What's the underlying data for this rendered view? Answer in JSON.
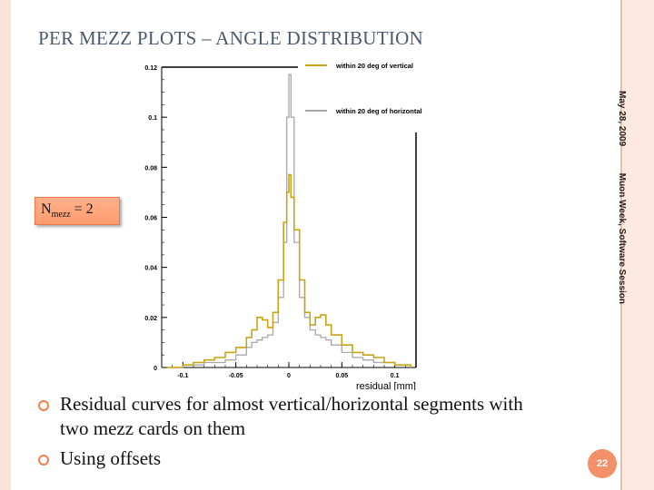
{
  "slide": {
    "title": "PER MEZZ PLOTS – ANGLE DISTRIBUTION",
    "date": "May 28, 2009",
    "event": "Muon Week, Software Session",
    "page_number": "22",
    "badge": {
      "base": "N",
      "sub": "mezz",
      "rest": " = 2"
    },
    "bullets": [
      "Residual curves for almost vertical/horizontal segments with two mezz cards on them",
      "Using offsets"
    ]
  },
  "colors": {
    "accent": "#f39068",
    "vertical_series": "#c8a415",
    "horizontal_series": "#a8a8a8",
    "title": "#4a5a6c"
  },
  "chart_data": {
    "type": "line",
    "xlabel": "residual [mm]",
    "ylabel": "",
    "xlim": [
      -0.12,
      0.12
    ],
    "ylim": [
      0,
      0.12
    ],
    "x_ticks": [
      -0.1,
      -0.05,
      0,
      0.05,
      0.1
    ],
    "x_tick_labels": [
      "-0.1",
      "-0.05",
      "0",
      "0.05",
      "0.1"
    ],
    "y_ticks": [
      0,
      0.02,
      0.04,
      0.06,
      0.08,
      0.1,
      0.12
    ],
    "y_tick_labels": [
      "0",
      "0.02",
      "0.04",
      "0.06",
      "0.08",
      "0.1",
      "0.12"
    ],
    "legend_position": "top-right",
    "x": [
      -0.115,
      -0.1,
      -0.09,
      -0.08,
      -0.07,
      -0.06,
      -0.05,
      -0.04,
      -0.035,
      -0.03,
      -0.025,
      -0.02,
      -0.015,
      -0.01,
      -0.005,
      -0.002,
      0,
      0.002,
      0.005,
      0.01,
      0.015,
      0.02,
      0.025,
      0.03,
      0.035,
      0.04,
      0.05,
      0.06,
      0.07,
      0.08,
      0.09,
      0.1,
      0.115
    ],
    "series": [
      {
        "name": "within 20 deg of vertical",
        "values": [
          0,
          0.001,
          0.002,
          0.003,
          0.004,
          0.006,
          0.008,
          0.012,
          0.015,
          0.02,
          0.019,
          0.016,
          0.022,
          0.035,
          0.058,
          0.07,
          0.077,
          0.068,
          0.055,
          0.035,
          0.022,
          0.017,
          0.02,
          0.021,
          0.017,
          0.013,
          0.009,
          0.006,
          0.005,
          0.004,
          0.002,
          0.001,
          0
        ]
      },
      {
        "name": "within 20 deg of horizontal",
        "values": [
          0,
          0.001,
          0.001,
          0.002,
          0.002,
          0.003,
          0.005,
          0.008,
          0.01,
          0.011,
          0.012,
          0.013,
          0.018,
          0.028,
          0.05,
          0.1,
          0.117,
          0.1,
          0.05,
          0.028,
          0.02,
          0.015,
          0.013,
          0.012,
          0.011,
          0.009,
          0.006,
          0.004,
          0.003,
          0.002,
          0.002,
          0.001,
          0
        ]
      }
    ]
  }
}
